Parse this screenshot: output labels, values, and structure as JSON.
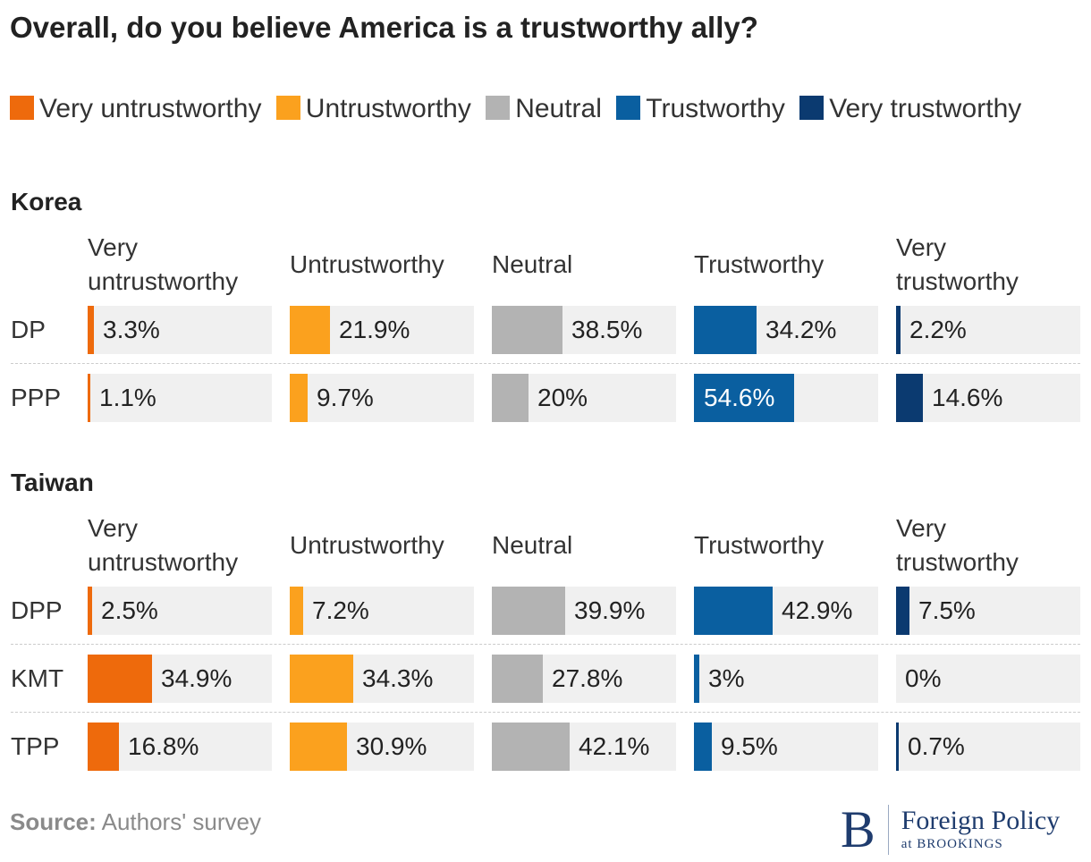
{
  "title": "Overall, do you believe America is a trustworthy ally?",
  "legend": [
    {
      "label": "Very untrustworthy",
      "color": "#ee6a0c"
    },
    {
      "label": "Untrustworthy",
      "color": "#fba11e"
    },
    {
      "label": "Neutral",
      "color": "#b3b3b3"
    },
    {
      "label": "Trustworthy",
      "color": "#0a5fa0"
    },
    {
      "label": "Very trustworthy",
      "color": "#0b3a70"
    }
  ],
  "chart_data": {
    "type": "bar",
    "title": "Overall, do you believe America is a trustworthy ally?",
    "categories": [
      "Very untrustworthy",
      "Untrustworthy",
      "Neutral",
      "Trustworthy",
      "Very trustworthy"
    ],
    "column_headers": [
      "Very untrustworthy",
      "Untrustworthy",
      "Neutral",
      "Trustworthy",
      "Very trustworthy"
    ],
    "max_value": 100,
    "panels": [
      {
        "name": "Korea",
        "rows": [
          {
            "label": "DP",
            "values": [
              3.3,
              21.9,
              38.5,
              34.2,
              2.2
            ],
            "display": [
              "3.3%",
              "21.9%",
              "38.5%",
              "34.2%",
              "2.2%"
            ]
          },
          {
            "label": "PPP",
            "values": [
              1.1,
              9.7,
              20,
              54.6,
              14.6
            ],
            "display": [
              "1.1%",
              "9.7%",
              "20%",
              "54.6%",
              "14.6%"
            ]
          }
        ]
      },
      {
        "name": "Taiwan",
        "rows": [
          {
            "label": "DPP",
            "values": [
              2.5,
              7.2,
              39.9,
              42.9,
              7.5
            ],
            "display": [
              "2.5%",
              "7.2%",
              "39.9%",
              "42.9%",
              "7.5%"
            ]
          },
          {
            "label": "KMT",
            "values": [
              34.9,
              34.3,
              27.8,
              3,
              0
            ],
            "display": [
              "34.9%",
              "34.3%",
              "27.8%",
              "3%",
              "0%"
            ]
          },
          {
            "label": "TPP",
            "values": [
              16.8,
              30.9,
              42.1,
              9.5,
              0.7
            ],
            "display": [
              "16.8%",
              "30.9%",
              "42.1%",
              "9.5%",
              "0.7%"
            ]
          }
        ]
      }
    ]
  },
  "source": {
    "label": "Source:",
    "text": "Authors' survey"
  },
  "logo": {
    "mark": "B",
    "name": "Foreign Policy",
    "sub": "at BROOKINGS"
  }
}
